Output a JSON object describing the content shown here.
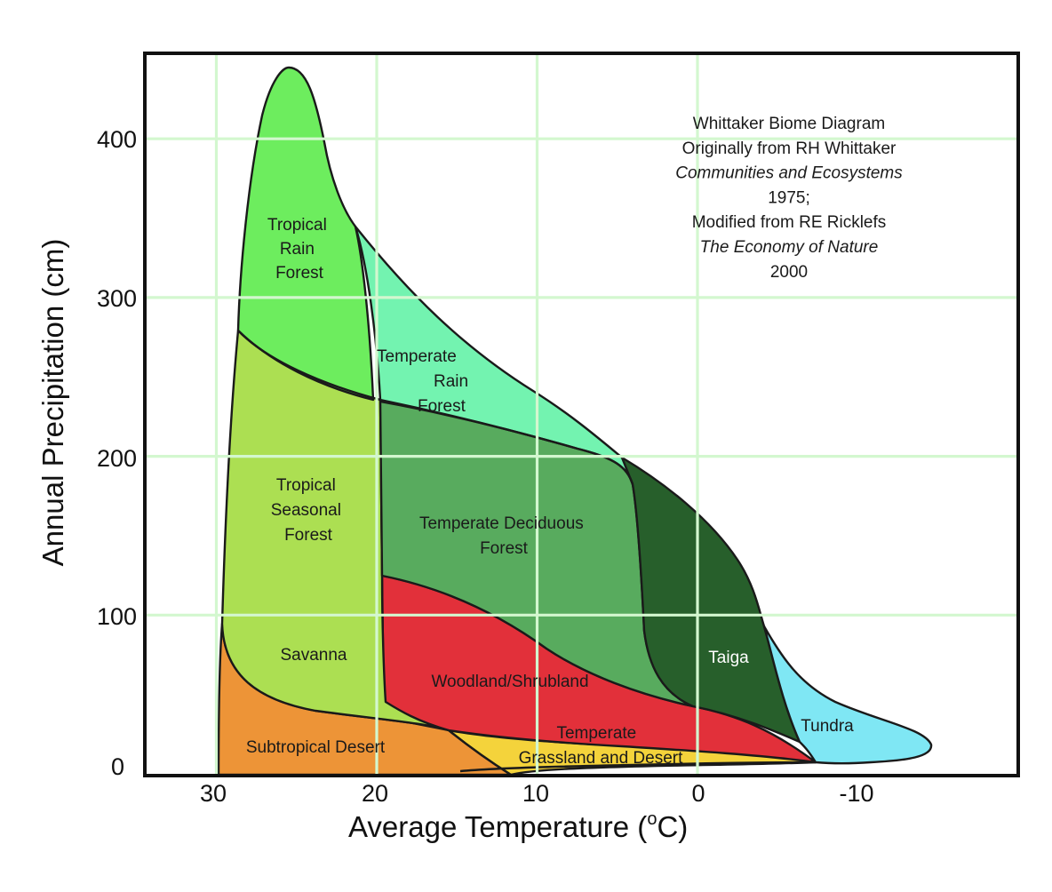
{
  "chart_data": {
    "type": "area",
    "xlabel": "Average Temperature (",
    "xlabel_sup": "o",
    "xlabel_unit": "C)",
    "ylabel": "Annual Precipitation (cm)",
    "xlim": [
      35,
      -20
    ],
    "ylim": [
      0,
      445
    ],
    "x_ticks": [
      "30",
      "20",
      "10",
      "0",
      "-10"
    ],
    "y_ticks": [
      "400",
      "300",
      "200",
      "100",
      "0"
    ],
    "grid": true,
    "colors": {
      "tropical_rain_forest": "#6ded5e",
      "tropical_seasonal_forest": "#acdf52",
      "temperate_rain_forest": "#73f3b0",
      "temperate_deciduous_forest": "#58ab5e",
      "taiga": "#275f2b",
      "tundra": "#7fe7f4",
      "woodland_shrubland": "#e2303a",
      "temperate_grassland_desert": "#f4d33b",
      "subtropical_desert": "#ed9437",
      "grid": "#d3f7cf"
    },
    "biomes": [
      {
        "key": "tropical_rain_forest",
        "lines": [
          "Tropical",
          "Rain",
          "Forest"
        ]
      },
      {
        "key": "temperate_rain_forest",
        "lines": [
          "Temperate",
          "Rain",
          "Forest"
        ]
      },
      {
        "key": "tropical_seasonal_forest",
        "lines": [
          "Tropical",
          "Seasonal",
          "Forest"
        ]
      },
      {
        "key": "temperate_deciduous_forest",
        "lines": [
          "Temperate Deciduous",
          "Forest"
        ]
      },
      {
        "key": "savanna",
        "lines": [
          "Savanna"
        ]
      },
      {
        "key": "woodland_shrubland",
        "lines": [
          "Woodland/Shrubland"
        ]
      },
      {
        "key": "taiga",
        "lines": [
          "Taiga"
        ]
      },
      {
        "key": "tundra",
        "lines": [
          "Tundra"
        ]
      },
      {
        "key": "temperate_grassland_desert",
        "lines": [
          "Temperate",
          "Grassland and Desert"
        ]
      },
      {
        "key": "subtropical_desert",
        "lines": [
          "Subtropical Desert"
        ]
      }
    ],
    "annotation": [
      {
        "text": "Whittaker Biome Diagram",
        "italic": false
      },
      {
        "text": "Originally from RH Whittaker",
        "italic": false
      },
      {
        "text": "Communities and Ecosystems",
        "italic": true
      },
      {
        "text": "1975;",
        "italic": false
      },
      {
        "text": "Modified from RE Ricklefs",
        "italic": false
      },
      {
        "text": "The Economy of Nature",
        "italic": true
      },
      {
        "text": "2000",
        "italic": false
      }
    ]
  }
}
